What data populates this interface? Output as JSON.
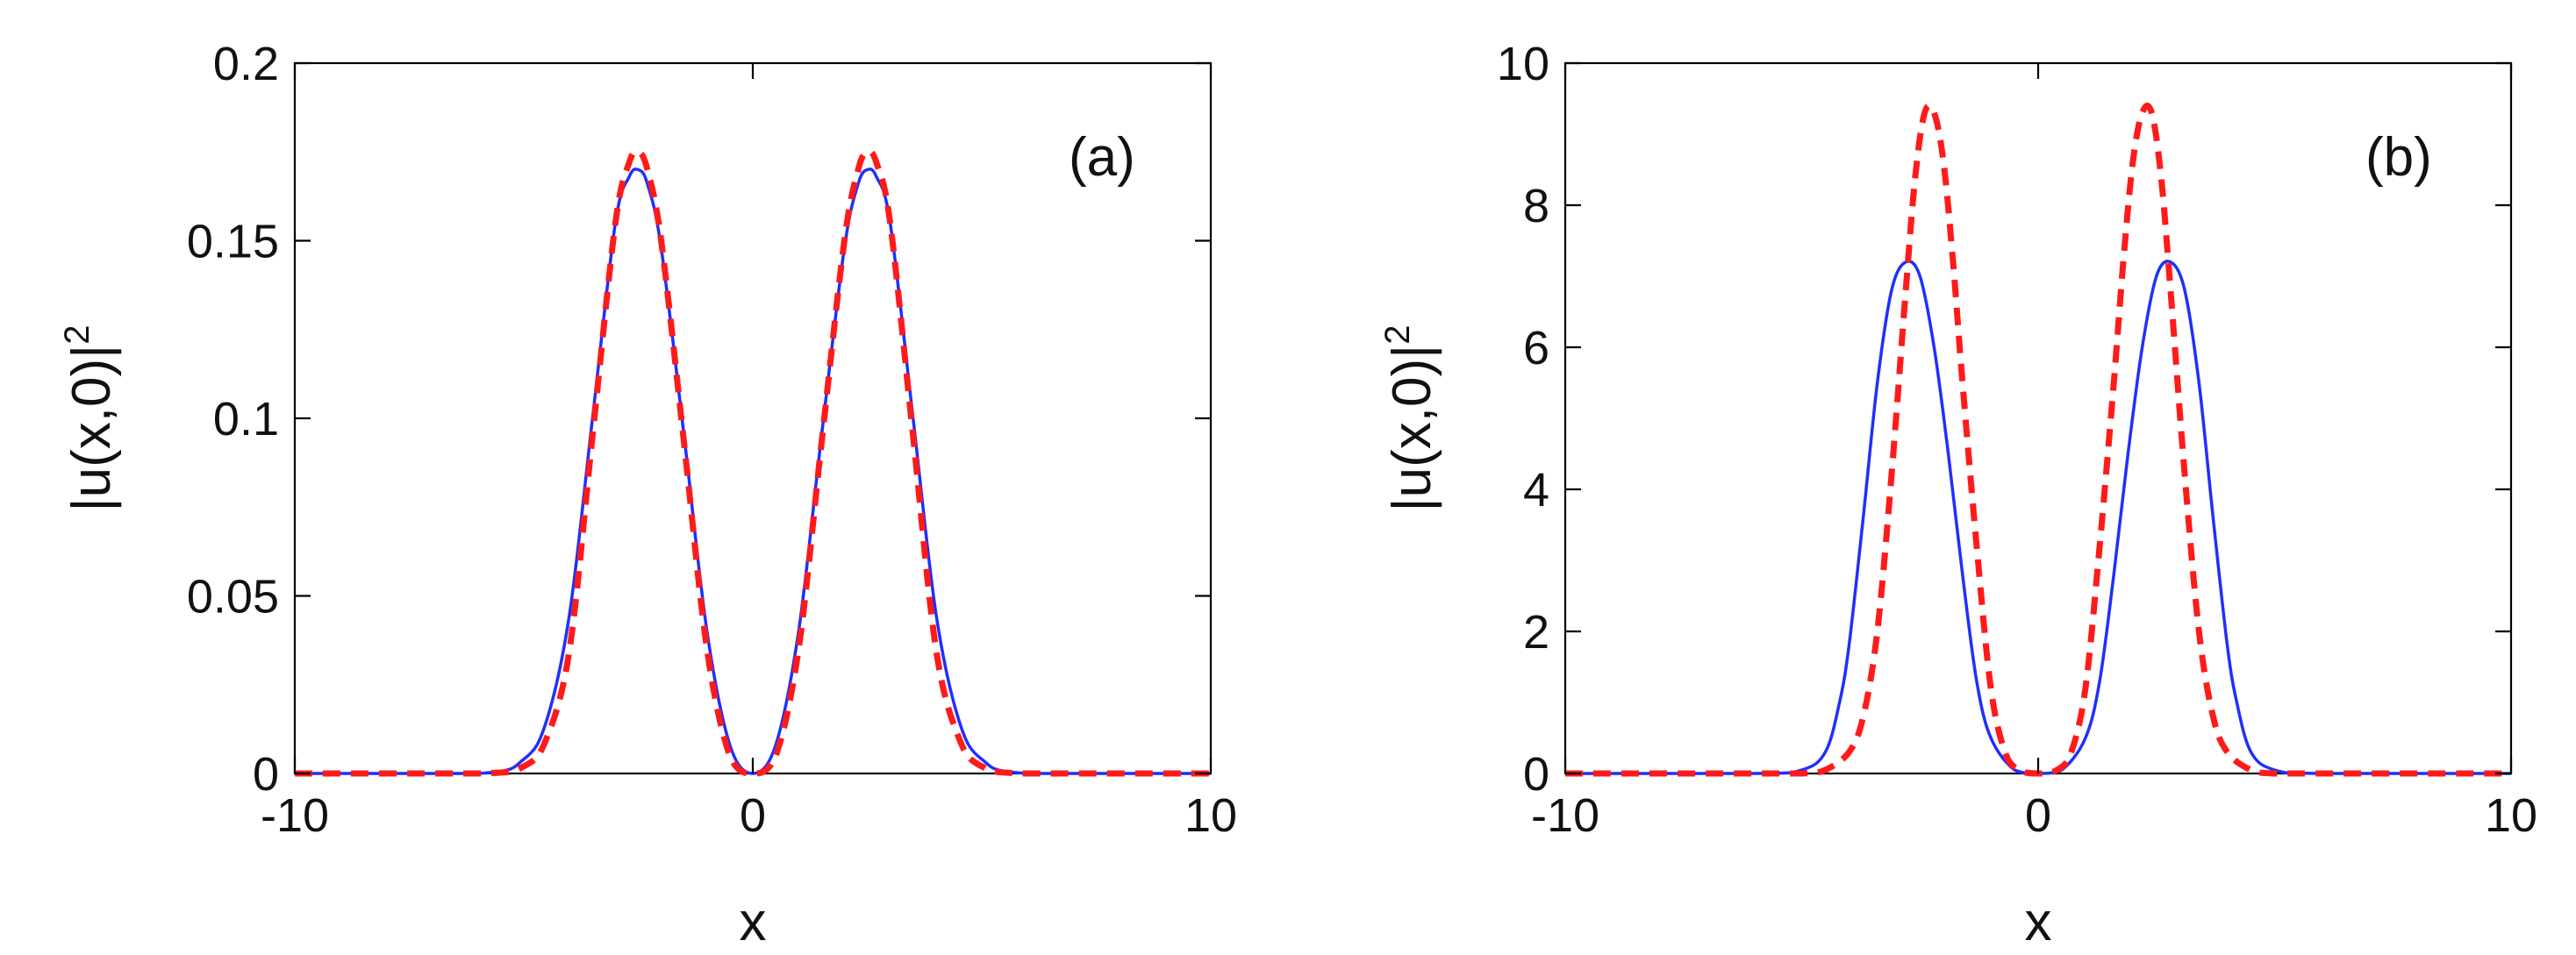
{
  "chart_data": [
    {
      "type": "line",
      "panel_label": "(a)",
      "xlabel": "x",
      "ylabel": "|u(x,0)|",
      "ylabel_sup": "2",
      "xlim": [
        -10,
        10
      ],
      "ylim": [
        0,
        0.2
      ],
      "xticks": [
        -10,
        0,
        10
      ],
      "yticks": [
        0,
        0.05,
        0.1,
        0.15,
        0.2
      ],
      "ytick_labels": [
        "0",
        "0.05",
        "0.1",
        "0.15",
        "0.2"
      ],
      "grid": false,
      "series": [
        {
          "style": "solid",
          "color": "#1f2fff",
          "x": [
            -10,
            -6,
            -5,
            -4.5,
            -4,
            -3.5,
            -3,
            -2.7,
            -2.5,
            -2.3,
            -2,
            -1.5,
            -1,
            -0.5,
            0,
            0.5,
            1,
            1.5,
            2,
            2.3,
            2.5,
            2.7,
            3,
            3.5,
            4,
            4.5,
            5,
            6,
            10
          ],
          "y": [
            0,
            0,
            0.004,
            0.015,
            0.045,
            0.1,
            0.155,
            0.168,
            0.17,
            0.166,
            0.148,
            0.095,
            0.04,
            0.008,
            0,
            0.008,
            0.04,
            0.095,
            0.148,
            0.166,
            0.17,
            0.168,
            0.155,
            0.1,
            0.045,
            0.015,
            0.004,
            0,
            0
          ]
        },
        {
          "style": "dashed",
          "color": "#ff1a1a",
          "x": [
            -10,
            -6,
            -5,
            -4.5,
            -4,
            -3.5,
            -3,
            -2.7,
            -2.5,
            -2.3,
            -2,
            -1.5,
            -1,
            -0.5,
            0,
            0.5,
            1,
            1.5,
            2,
            2.3,
            2.5,
            2.7,
            3,
            3.5,
            4,
            4.5,
            5,
            6,
            10
          ],
          "y": [
            0,
            0,
            0.002,
            0.01,
            0.035,
            0.095,
            0.155,
            0.172,
            0.175,
            0.17,
            0.15,
            0.093,
            0.035,
            0.005,
            0,
            0.005,
            0.035,
            0.093,
            0.15,
            0.17,
            0.175,
            0.172,
            0.155,
            0.095,
            0.035,
            0.01,
            0.002,
            0,
            0
          ]
        }
      ]
    },
    {
      "type": "line",
      "panel_label": "(b)",
      "xlabel": "x",
      "ylabel": "|u(x,0)|",
      "ylabel_sup": "2",
      "xlim": [
        -10,
        10
      ],
      "ylim": [
        0,
        10
      ],
      "xticks": [
        -10,
        0,
        10
      ],
      "yticks": [
        0,
        2,
        4,
        6,
        8,
        10
      ],
      "ytick_labels": [
        "0",
        "2",
        "4",
        "6",
        "8",
        "10"
      ],
      "grid": false,
      "series": [
        {
          "style": "solid",
          "color": "#1f2fff",
          "x": [
            -10,
            -6,
            -5,
            -4.5,
            -4.2,
            -4,
            -3.7,
            -3.4,
            -3.1,
            -2.8,
            -2.5,
            -2.2,
            -1.9,
            -1.6,
            -1.3,
            -1,
            -0.5,
            0,
            0.5,
            1,
            1.3,
            1.6,
            1.9,
            2.2,
            2.5,
            2.8,
            3.1,
            3.4,
            3.7,
            4,
            4.2,
            4.5,
            5,
            6,
            10
          ],
          "y": [
            0,
            0,
            0.05,
            0.3,
            1,
            1.8,
            3.6,
            5.5,
            6.8,
            7.2,
            7,
            6,
            4.5,
            2.8,
            1.3,
            0.5,
            0.05,
            0,
            0.05,
            0.5,
            1.3,
            2.8,
            4.5,
            6,
            7,
            7.2,
            6.8,
            5.5,
            3.6,
            1.8,
            1,
            0.3,
            0.05,
            0,
            0
          ]
        },
        {
          "style": "dashed",
          "color": "#ff1a1a",
          "x": [
            -10,
            -6,
            -5,
            -4.5,
            -4,
            -3.7,
            -3.4,
            -3.1,
            -2.8,
            -2.6,
            -2.4,
            -2.2,
            -2,
            -1.8,
            -1.6,
            -1.3,
            -1,
            -0.7,
            -0.4,
            0,
            0.4,
            0.7,
            1,
            1.3,
            1.6,
            1.8,
            2,
            2.2,
            2.4,
            2.6,
            2.8,
            3.1,
            3.4,
            3.7,
            4,
            4.5,
            5,
            6,
            10
          ],
          "y": [
            0,
            0,
            0,
            0.05,
            0.3,
            0.8,
            2,
            4.2,
            6.8,
            8.4,
            9.3,
            9.3,
            8.6,
            7.2,
            5.5,
            3.2,
            1.2,
            0.3,
            0.05,
            0,
            0.05,
            0.3,
            1.2,
            3.2,
            5.5,
            7.2,
            8.6,
            9.3,
            9.3,
            8.4,
            6.8,
            4.2,
            2,
            0.8,
            0.3,
            0.05,
            0,
            0,
            0
          ]
        }
      ]
    }
  ]
}
